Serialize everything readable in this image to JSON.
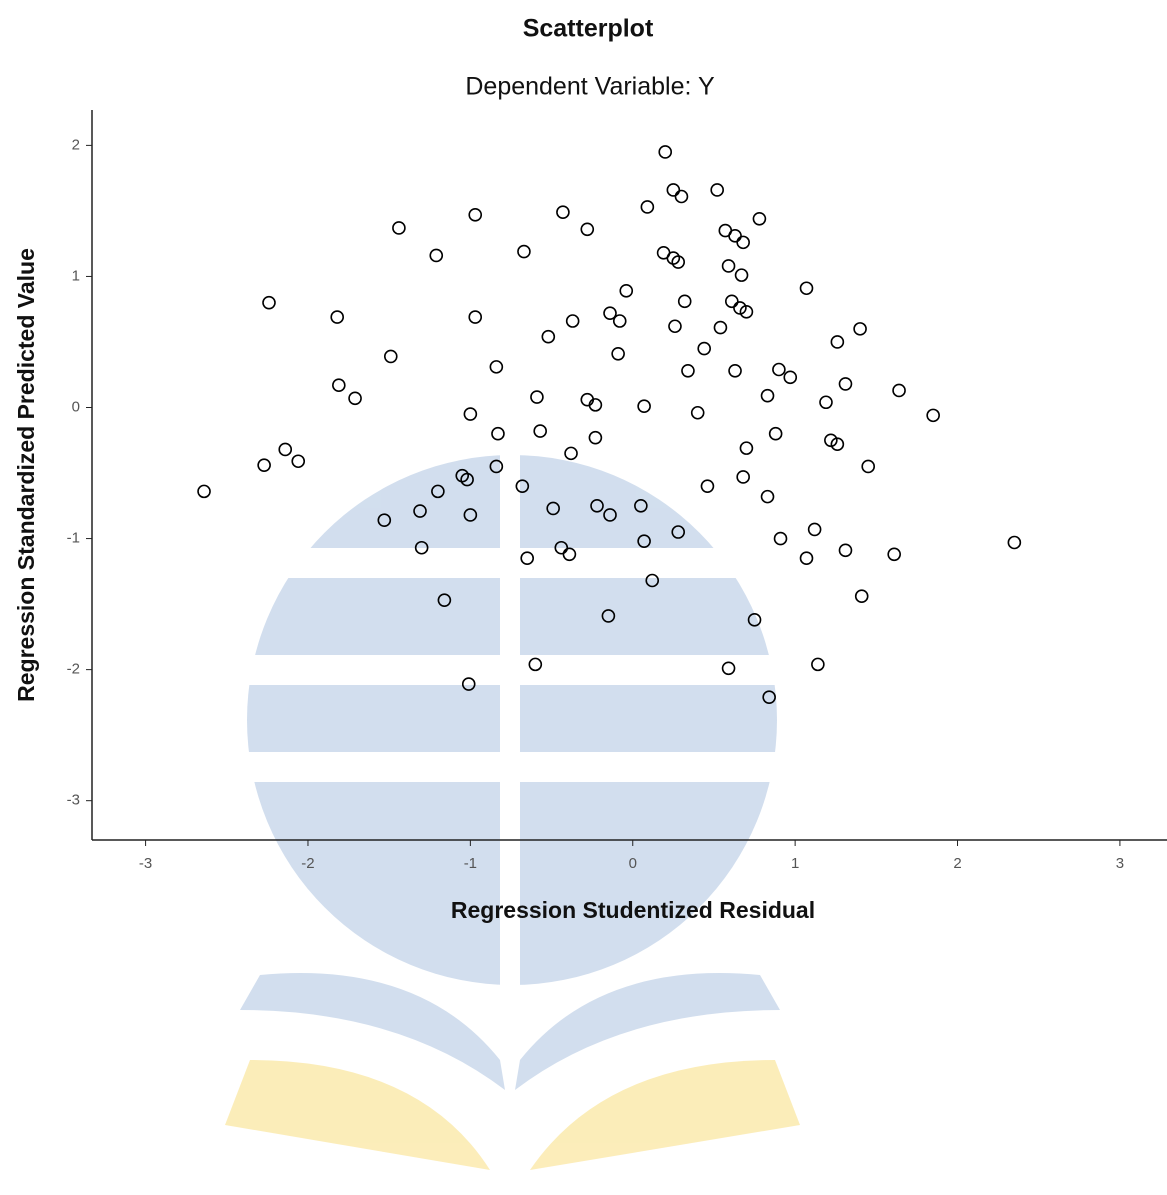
{
  "chart_data": {
    "type": "scatter",
    "title": "Scatterplot",
    "subtitle": "Dependent Variable: Y",
    "x_label": "Regression Studentized Residual",
    "y_label": "Regression Standardized Predicted Value",
    "color": "#000000",
    "xlim": [
      -3.33,
      3.29
    ],
    "ylim": [
      -3.3,
      2.27
    ],
    "xticks": [
      -3,
      -2,
      -1,
      0,
      1,
      2,
      3
    ],
    "yticks": [
      -3,
      -2,
      -1,
      0,
      1,
      2
    ],
    "x": [
      0.2,
      0.25,
      0.3,
      0.52,
      0.09,
      -0.43,
      -0.97,
      0.78,
      -1.44,
      -0.28,
      0.57,
      0.63,
      0.68,
      -0.67,
      0.19,
      -1.21,
      0.25,
      0.28,
      0.59,
      0.67,
      -0.04,
      1.07,
      -2.24,
      0.32,
      0.61,
      0.66,
      0.7,
      -1.82,
      -0.97,
      -0.14,
      -0.08,
      -0.37,
      0.26,
      0.54,
      1.4,
      -0.52,
      1.26,
      0.44,
      -0.09,
      -1.49,
      -0.84,
      0.9,
      0.34,
      0.63,
      0.97,
      -1.81,
      1.31,
      1.64,
      -1.71,
      -0.59,
      0.83,
      -0.28,
      -0.23,
      0.07,
      1.19,
      -1.0,
      0.4,
      1.85,
      -0.83,
      -0.57,
      -0.23,
      0.88,
      1.22,
      1.26,
      0.7,
      -2.14,
      -0.38,
      -2.27,
      -2.06,
      1.45,
      -0.84,
      -1.05,
      -1.02,
      0.68,
      -0.68,
      0.46,
      -2.64,
      -1.2,
      0.83,
      -0.49,
      -0.22,
      0.05,
      -1.31,
      -0.14,
      -1.0,
      -1.53,
      1.12,
      0.28,
      0.91,
      0.07,
      2.35,
      -1.3,
      -0.44,
      1.31,
      -0.39,
      1.61,
      -0.65,
      1.07,
      0.12,
      -1.16,
      1.41,
      -0.15,
      0.75,
      -0.6,
      1.14,
      0.59,
      -1.01,
      0.84
    ],
    "values": [
      1.95,
      1.66,
      1.61,
      1.66,
      1.53,
      1.49,
      1.47,
      1.44,
      1.37,
      1.36,
      1.35,
      1.31,
      1.26,
      1.19,
      1.18,
      1.16,
      1.14,
      1.11,
      1.08,
      1.01,
      0.89,
      0.91,
      0.8,
      0.81,
      0.81,
      0.76,
      0.73,
      0.69,
      0.69,
      0.72,
      0.66,
      0.66,
      0.62,
      0.61,
      0.6,
      0.54,
      0.5,
      0.45,
      0.41,
      0.39,
      0.31,
      0.29,
      0.28,
      0.28,
      0.23,
      0.17,
      0.18,
      0.13,
      0.07,
      0.08,
      0.09,
      0.06,
      0.02,
      0.01,
      0.04,
      -0.05,
      -0.04,
      -0.06,
      -0.2,
      -0.18,
      -0.23,
      -0.2,
      -0.25,
      -0.28,
      -0.31,
      -0.32,
      -0.35,
      -0.44,
      -0.41,
      -0.45,
      -0.45,
      -0.52,
      -0.55,
      -0.53,
      -0.6,
      -0.6,
      -0.64,
      -0.64,
      -0.68,
      -0.77,
      -0.75,
      -0.75,
      -0.79,
      -0.82,
      -0.82,
      -0.86,
      -0.93,
      -0.95,
      -1.0,
      -1.02,
      -1.03,
      -1.07,
      -1.07,
      -1.09,
      -1.12,
      -1.12,
      -1.15,
      -1.15,
      -1.32,
      -1.47,
      -1.44,
      -1.59,
      -1.62,
      -1.96,
      -1.96,
      -1.99,
      -2.11,
      -2.21
    ]
  }
}
